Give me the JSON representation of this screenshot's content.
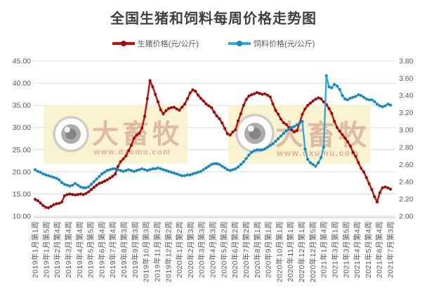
{
  "title": "全国生猪和饲料每周价格走势图",
  "watermark": {
    "brand": "大畜牧",
    "url": "www.dxumu.com"
  },
  "chart_data": {
    "type": "line",
    "title": "全国生猪和饲料每周价格走势图",
    "legend_position": "top",
    "grid": "horizontal",
    "left_axis": {
      "min": 10,
      "max": 45,
      "ticks": [
        "45.00",
        "40.00",
        "35.00",
        "30.00",
        "25.00",
        "20.00",
        "15.00",
        "10.00"
      ]
    },
    "right_axis": {
      "min": 2.0,
      "max": 3.8,
      "ticks": [
        "3.80",
        "3.60",
        "3.40",
        "3.20",
        "3.00",
        "2.80",
        "2.60",
        "2.40",
        "2.20",
        "2.00"
      ]
    },
    "x_tick_labels": [
      "2019年1月第1周",
      "2019年1月第5周",
      "2019年2月第4周",
      "2019年3月第4周",
      "2019年4月第4周",
      "2019年5月第5周",
      "2019年6月第4周",
      "2019年7月第4周",
      "2019年8月第3周",
      "2019年9月第3周",
      "2019年10月第3周",
      "2019年11月第2周",
      "2019年12月第2周",
      "2020年1月第2周",
      "2020年2月第3周",
      "2020年3月第3周",
      "2020年4月第3周",
      "2020年5月第2周",
      "2020年6月第2周",
      "2020年7月第2周",
      "2020年8月第1周",
      "2020年9月第1周",
      "2020年10月第1周",
      "2020年11月第1周",
      "2020年12月第1周",
      "2020年12月第5周",
      "2021年1月第4周",
      "2021年3月第1周",
      "2021年3月第5周",
      "2021年4月第4周",
      "2021年5月第4周",
      "2021年6月第4周",
      "2021年7月第3周"
    ],
    "series": [
      {
        "name": "生猪价格(元/公斤)",
        "axis": "left",
        "color": "#C40E08",
        "marker_color": "#9E0B05",
        "values": [
          13.8,
          13.5,
          13.0,
          12.4,
          12.0,
          11.9,
          12.2,
          12.6,
          12.8,
          12.9,
          13.2,
          14.6,
          14.9,
          15.0,
          14.9,
          14.8,
          14.9,
          15.0,
          14.9,
          15.1,
          15.5,
          16.0,
          16.5,
          17.0,
          17.4,
          17.6,
          17.9,
          18.2,
          18.6,
          19.0,
          19.5,
          21.2,
          22.3,
          22.9,
          23.6,
          24.8,
          26.0,
          27.6,
          28.3,
          28.7,
          29.9,
          32.5,
          36.5,
          40.6,
          39.2,
          37.5,
          35.8,
          34.0,
          33.1,
          33.8,
          34.3,
          34.5,
          34.6,
          34.2,
          33.9,
          34.6,
          35.3,
          36.5,
          37.8,
          38.5,
          38.2,
          37.3,
          36.6,
          36.0,
          35.3,
          34.9,
          34.5,
          33.5,
          32.6,
          32.0,
          31.0,
          29.8,
          28.6,
          28.3,
          29.0,
          29.5,
          31.5,
          33.1,
          35.0,
          36.3,
          37.1,
          37.4,
          37.6,
          37.9,
          37.7,
          37.5,
          37.6,
          37.3,
          36.9,
          35.3,
          33.9,
          33.0,
          31.9,
          31.1,
          30.7,
          30.0,
          29.5,
          29.0,
          29.3,
          31.0,
          33.0,
          34.2,
          35.0,
          35.5,
          36.0,
          36.4,
          36.7,
          36.5,
          35.8,
          35.2,
          34.3,
          33.2,
          31.4,
          30.0,
          29.2,
          28.4,
          27.6,
          26.8,
          25.8,
          24.4,
          23.5,
          22.1,
          20.8,
          20.0,
          18.7,
          17.3,
          16.0,
          14.4,
          13.2,
          15.3,
          16.4,
          16.6,
          16.4,
          16.1
        ]
      },
      {
        "name": "饲料价格(元/公斤)",
        "axis": "right",
        "color": "#29ABE2",
        "marker_color": "#1489C0",
        "values": [
          2.54,
          2.52,
          2.51,
          2.49,
          2.48,
          2.47,
          2.46,
          2.45,
          2.44,
          2.42,
          2.39,
          2.37,
          2.36,
          2.35,
          2.36,
          2.38,
          2.36,
          2.34,
          2.33,
          2.33,
          2.34,
          2.37,
          2.4,
          2.43,
          2.46,
          2.49,
          2.51,
          2.53,
          2.54,
          2.55,
          2.55,
          2.54,
          2.53,
          2.52,
          2.53,
          2.54,
          2.53,
          2.52,
          2.53,
          2.54,
          2.55,
          2.54,
          2.53,
          2.54,
          2.55,
          2.55,
          2.56,
          2.55,
          2.54,
          2.53,
          2.52,
          2.51,
          2.5,
          2.49,
          2.48,
          2.47,
          2.47,
          2.48,
          2.48,
          2.49,
          2.5,
          2.51,
          2.52,
          2.54,
          2.56,
          2.58,
          2.6,
          2.61,
          2.61,
          2.6,
          2.58,
          2.56,
          2.54,
          2.53,
          2.54,
          2.55,
          2.57,
          2.6,
          2.63,
          2.67,
          2.71,
          2.74,
          2.76,
          2.77,
          2.77,
          2.77,
          2.78,
          2.8,
          2.82,
          2.84,
          2.87,
          2.9,
          2.93,
          2.96,
          2.99,
          3.01,
          3.03,
          3.04,
          3.06,
          3.08,
          3.1,
          2.78,
          2.66,
          2.62,
          2.6,
          2.58,
          2.62,
          2.68,
          2.8,
          3.63,
          3.5,
          3.49,
          3.53,
          3.51,
          3.47,
          3.4,
          3.36,
          3.35,
          3.37,
          3.38,
          3.39,
          3.41,
          3.4,
          3.38,
          3.36,
          3.35,
          3.35,
          3.33,
          3.3,
          3.28,
          3.27,
          3.28,
          3.3,
          3.29
        ]
      }
    ]
  }
}
